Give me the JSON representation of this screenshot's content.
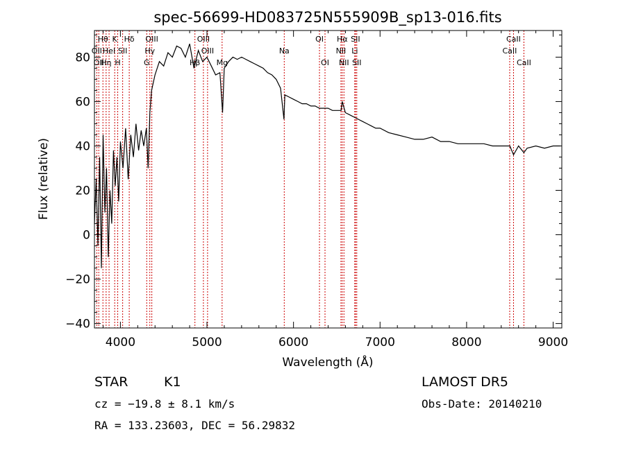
{
  "chart_data": {
    "type": "line",
    "title": "spec-56699-HD083725N555909B_sp13-016.fits",
    "xlabel": "Wavelength (Å)",
    "ylabel": "Flux (relative)",
    "xlim": [
      3700,
      9100
    ],
    "ylim": [
      -42,
      92
    ],
    "x_ticks": [
      4000,
      5000,
      6000,
      7000,
      8000,
      9000
    ],
    "x_tick_labels": [
      "4000",
      "5000",
      "6000",
      "7000",
      "8000",
      "9000"
    ],
    "y_ticks": [
      -40,
      -20,
      0,
      20,
      40,
      60,
      80
    ],
    "y_tick_labels": [
      "−40",
      "−20",
      "0",
      "20",
      "40",
      "60",
      "80"
    ],
    "line_color": "#000000",
    "marker_color": "#cc0000",
    "series": [
      {
        "x": [
          3700,
          3720,
          3740,
          3760,
          3780,
          3800,
          3820,
          3840,
          3860,
          3880,
          3900,
          3920,
          3940,
          3960,
          3980,
          4000,
          4030,
          4060,
          4090,
          4120,
          4150,
          4180,
          4210,
          4240,
          4270,
          4300,
          4320,
          4340,
          4360,
          4400,
          4450,
          4500,
          4550,
          4600,
          4650,
          4700,
          4750,
          4800,
          4850,
          4900,
          4950,
          5000,
          5050,
          5100,
          5150,
          5180,
          5200,
          5250,
          5300,
          5350,
          5400,
          5450,
          5500,
          5550,
          5600,
          5650,
          5700,
          5750,
          5800,
          5850,
          5890,
          5900,
          5950,
          6000,
          6050,
          6100,
          6150,
          6200,
          6250,
          6300,
          6350,
          6400,
          6450,
          6500,
          6550,
          6563,
          6600,
          6650,
          6700,
          6750,
          6800,
          6850,
          6900,
          6950,
          7000,
          7100,
          7200,
          7300,
          7400,
          7500,
          7600,
          7700,
          7800,
          7900,
          8000,
          8100,
          8200,
          8300,
          8400,
          8500,
          8542,
          8600,
          8662,
          8700,
          8800,
          8900,
          9000,
          9080
        ],
        "y": [
          5,
          25,
          -5,
          35,
          -15,
          45,
          10,
          30,
          -10,
          20,
          5,
          38,
          22,
          35,
          15,
          42,
          30,
          48,
          25,
          45,
          35,
          50,
          38,
          47,
          40,
          48,
          30,
          55,
          65,
          72,
          78,
          76,
          82,
          80,
          85,
          84,
          80,
          86,
          75,
          83,
          78,
          80,
          76,
          72,
          73,
          55,
          75,
          78,
          80,
          79,
          80,
          79,
          78,
          77,
          76,
          75,
          73,
          72,
          70,
          66,
          52,
          63,
          62,
          61,
          60,
          59,
          59,
          58,
          58,
          57,
          57,
          57,
          56,
          56,
          56,
          60,
          55,
          54,
          53,
          52,
          51,
          50,
          49,
          48,
          48,
          46,
          45,
          44,
          43,
          43,
          44,
          42,
          42,
          41,
          41,
          41,
          41,
          40,
          40,
          40,
          36,
          40,
          37,
          39,
          40,
          39,
          40,
          40
        ]
      }
    ],
    "spectral_lines": [
      {
        "x": 3727,
        "label": "OII",
        "row": 2
      },
      {
        "x": 3750,
        "label": "OII",
        "row": 3
      },
      {
        "x": 3798,
        "label": "Hθ",
        "row": 1
      },
      {
        "x": 3835,
        "label": "Hη",
        "row": 3
      },
      {
        "x": 3869,
        "label": "HeI",
        "row": 2
      },
      {
        "x": 3934,
        "label": "K",
        "row": 1
      },
      {
        "x": 3969,
        "label": "H",
        "row": 3
      },
      {
        "x": 4026,
        "label": "SII",
        "row": 2
      },
      {
        "x": 4102,
        "label": "Hδ",
        "row": 1
      },
      {
        "x": 4304,
        "label": "G",
        "row": 3
      },
      {
        "x": 4340,
        "label": "Hγ",
        "row": 2
      },
      {
        "x": 4363,
        "label": "OIII",
        "row": 1
      },
      {
        "x": 4861,
        "label": "Hβ",
        "row": 3
      },
      {
        "x": 4959,
        "label": "OIII",
        "row": 1
      },
      {
        "x": 5007,
        "label": "OIII",
        "row": 2
      },
      {
        "x": 5175,
        "label": "Mg",
        "row": 3
      },
      {
        "x": 5893,
        "label": "Na",
        "row": 2
      },
      {
        "x": 6300,
        "label": "OI",
        "row": 1
      },
      {
        "x": 6364,
        "label": "OI",
        "row": 3
      },
      {
        "x": 6548,
        "label": "NII",
        "row": 2
      },
      {
        "x": 6563,
        "label": "Hα",
        "row": 1
      },
      {
        "x": 6583,
        "label": "NII",
        "row": 3
      },
      {
        "x": 6708,
        "label": "Li",
        "row": 2
      },
      {
        "x": 6716,
        "label": "SII",
        "row": 1
      },
      {
        "x": 6731,
        "label": "SII",
        "row": 3
      },
      {
        "x": 8498,
        "label": "CaII",
        "row": 2
      },
      {
        "x": 8542,
        "label": "CaII",
        "row": 1
      },
      {
        "x": 8662,
        "label": "CaII",
        "row": 3
      }
    ]
  },
  "info": {
    "object_class": "STAR",
    "subclass": "K1",
    "redshift_text": "cz = −19.8 ± 8.1 km/s",
    "coords_text": "RA = 133.23603, DEC =  56.29832",
    "survey": "LAMOST DR5",
    "obs_date": "Obs-Date: 20140210"
  }
}
